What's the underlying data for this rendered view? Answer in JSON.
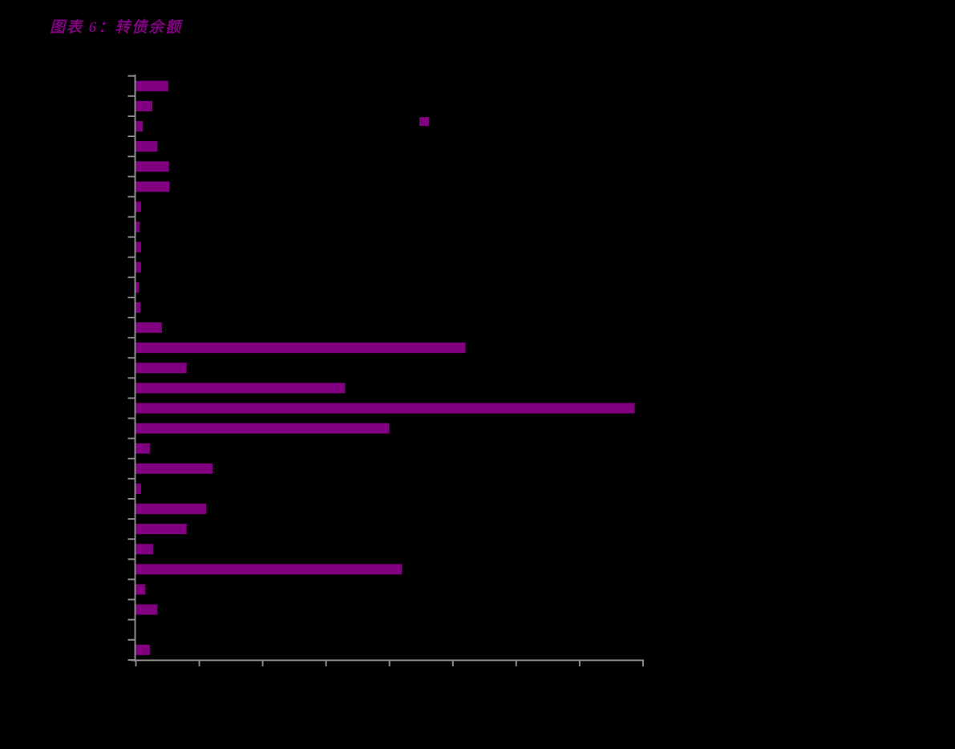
{
  "page": {
    "background_color": "#000000"
  },
  "figure": {
    "title": "图表 6：转债余额",
    "title_color": "#800080"
  },
  "chart_data": {
    "type": "bar",
    "orientation": "horizontal",
    "title": "图表 6：转债余额",
    "xlabel": "",
    "ylabel": "",
    "bar_color": "#800080",
    "axis_color": "#8C8C8C",
    "background_color": "#000000",
    "grid": false,
    "row_count": 29,
    "category_labels_visible": false,
    "axis_tick_labels_visible": false,
    "x_tick_count": 9,
    "y_tick_count": 30,
    "xlim": [
      0,
      8
    ],
    "x_tick_values": [
      0,
      1,
      2,
      3,
      4,
      5,
      6,
      7,
      8
    ],
    "value_unit": "x-axis tick intervals (numeric labels not visible in image)",
    "values": [
      0.51,
      0.26,
      0.11,
      0.34,
      0.52,
      0.53,
      0.08,
      0.06,
      0.08,
      0.08,
      0.05,
      0.07,
      0.41,
      5.2,
      0.8,
      3.3,
      7.87,
      4.0,
      0.22,
      1.21,
      0.08,
      1.11,
      0.8,
      0.27,
      4.2,
      0.15,
      0.34,
      0.0,
      0.22
    ],
    "legend": {
      "swatch_color": "#800080",
      "label_text_visible": false,
      "position": "top-center"
    }
  }
}
